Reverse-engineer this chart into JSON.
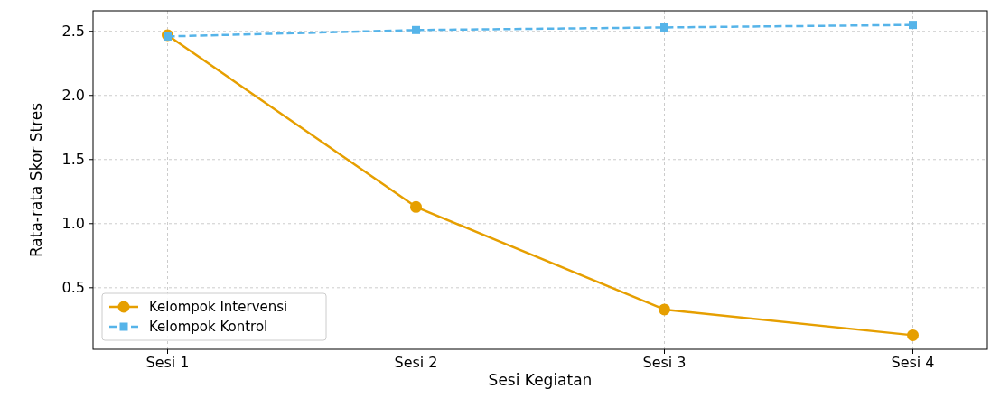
{
  "chart_data": {
    "type": "line",
    "xlabel": "Sesi Kegiatan",
    "ylabel": "Rata-rata Skor Stres",
    "categories": [
      "Sesi 1",
      "Sesi 2",
      "Sesi 3",
      "Sesi 4"
    ],
    "series": [
      {
        "name": "Kelompok Intervensi",
        "color": "#e69f00",
        "values": [
          2.47,
          1.13,
          0.33,
          0.13
        ],
        "marker": "circle",
        "line_style": "solid"
      },
      {
        "name": "Kelompok Kontrol",
        "color": "#56b4e9",
        "values": [
          2.46,
          2.51,
          2.53,
          2.55
        ],
        "marker": "square",
        "line_style": "dashed"
      }
    ],
    "ylim": [
      0.02,
      2.66
    ],
    "yticks": [
      {
        "value": 0.5,
        "label": "0.5"
      },
      {
        "value": 1.0,
        "label": "1.0"
      },
      {
        "value": 1.5,
        "label": "1.5"
      },
      {
        "value": 2.0,
        "label": "2.0"
      },
      {
        "value": 2.5,
        "label": "2.5"
      }
    ],
    "grid": true,
    "legend": "bottom left"
  }
}
